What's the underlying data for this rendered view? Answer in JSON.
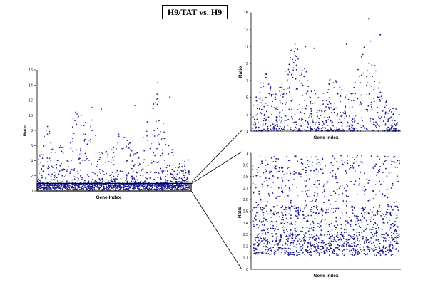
{
  "chart_data": [
    {
      "type": "scatter",
      "panel": "overview",
      "title": "H9/TAT vs. H9",
      "xlabel": "Gene Index",
      "ylabel": "Ratio",
      "ylim": [
        0,
        16
      ],
      "yticks": [
        "0",
        "2",
        "4",
        "6",
        "8",
        "10",
        "12",
        "14",
        "16"
      ],
      "n_points": 1600,
      "highlight_band": [
        0,
        1
      ],
      "notable_points": [
        {
          "y": 14.3
        },
        {
          "y": 12.4
        },
        {
          "y": 11.3
        },
        {
          "y": 11.0
        },
        {
          "y": 10.9
        },
        {
          "y": 10.8
        }
      ]
    },
    {
      "type": "scatter",
      "panel": "zoom-high",
      "xlabel": "Gene Index",
      "ylabel": "Ratio",
      "ylim": [
        1,
        15
      ],
      "yticks": [
        "1",
        "3",
        "5",
        "7",
        "9",
        "11",
        "13",
        "15"
      ],
      "n_points": 650,
      "notable_points": [
        {
          "y": 14.3
        },
        {
          "y": 12.4
        },
        {
          "y": 11.3
        },
        {
          "y": 11.0
        },
        {
          "y": 10.9
        },
        {
          "y": 10.8
        }
      ]
    },
    {
      "type": "scatter",
      "panel": "zoom-low",
      "xlabel": "Gene Index",
      "ylabel": "Ratio",
      "ylim": [
        0,
        1
      ],
      "yticks": [
        "0",
        "0.1",
        "0.2",
        "0.3",
        "0.4",
        "0.5",
        "0.6",
        "0.7",
        "0.8",
        "0.9",
        "1"
      ],
      "n_points": 1400
    }
  ],
  "colors": {
    "points": "#1a1a8c",
    "axes": "#000000",
    "band": "#000000"
  }
}
